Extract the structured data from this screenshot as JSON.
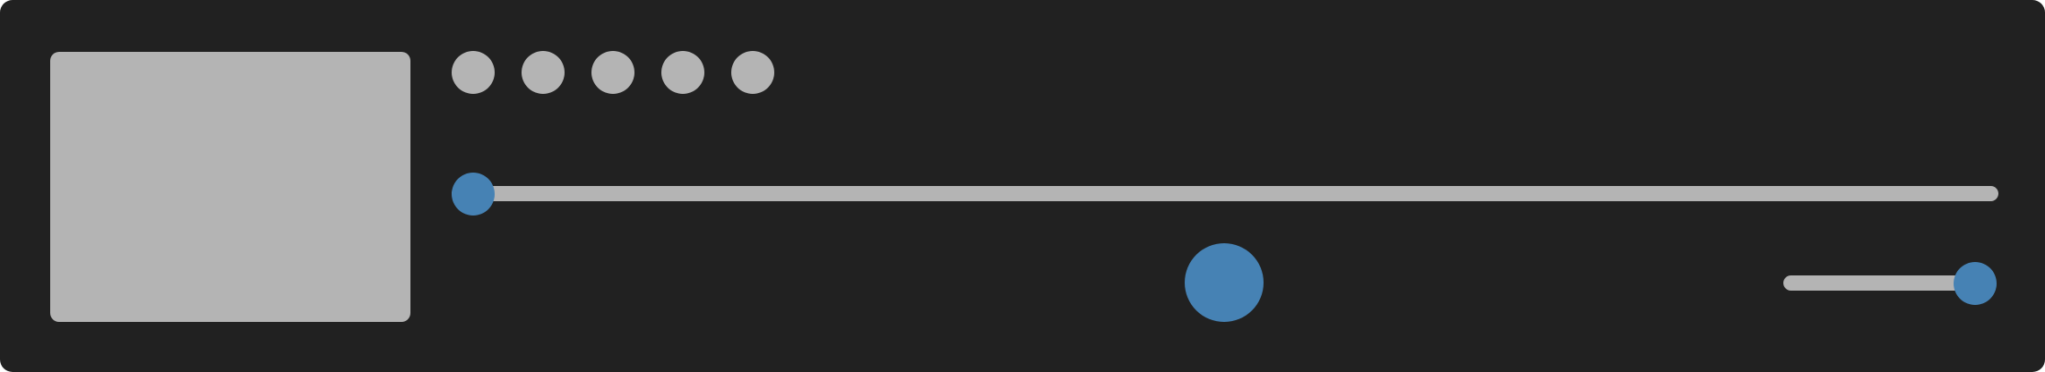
{
  "colors": {
    "background": "#212121",
    "placeholder": "#b4b4b4",
    "accent": "#4682b4"
  },
  "playlist": {
    "dot_count": 5
  },
  "playback": {
    "progress_fraction": 0.0,
    "state": "paused"
  },
  "volume": {
    "level_fraction": 1.0
  }
}
